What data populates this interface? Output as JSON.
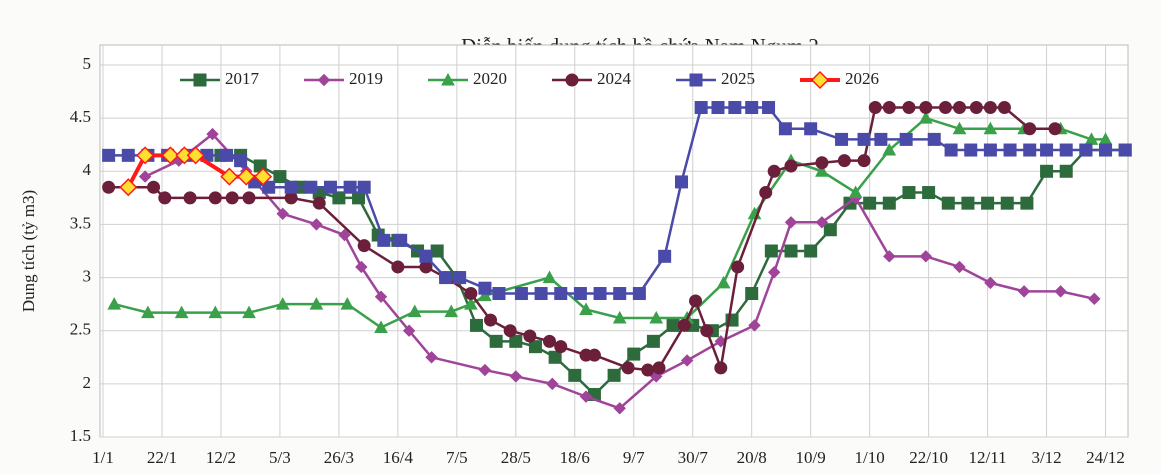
{
  "chart_data": {
    "type": "line",
    "title": "Diễn biến dung tích hồ chứa Nam Ngum 2",
    "y_label": "Dung tích (tỷ m3)",
    "xlim": [
      1,
      366
    ],
    "ylim": [
      1.5,
      5
    ],
    "xticks": [
      {
        "value": 1,
        "label": "1/1"
      },
      {
        "value": 22,
        "label": "22/1"
      },
      {
        "value": 43,
        "label": "12/2"
      },
      {
        "value": 64,
        "label": "5/3"
      },
      {
        "value": 85,
        "label": "26/3"
      },
      {
        "value": 106,
        "label": "16/4"
      },
      {
        "value": 127,
        "label": "7/5"
      },
      {
        "value": 148,
        "label": "28/5"
      },
      {
        "value": 169,
        "label": "18/6"
      },
      {
        "value": 190,
        "label": "9/7"
      },
      {
        "value": 211,
        "label": "30/7"
      },
      {
        "value": 232,
        "label": "20/8"
      },
      {
        "value": 253,
        "label": "10/9"
      },
      {
        "value": 274,
        "label": "1/10"
      },
      {
        "value": 295,
        "label": "22/10"
      },
      {
        "value": 316,
        "label": "12/11"
      },
      {
        "value": 337,
        "label": "3/12"
      },
      {
        "value": 358,
        "label": "24/12"
      }
    ],
    "yticks": [
      1.5,
      2,
      2.5,
      3,
      3.5,
      4,
      4.5,
      5
    ],
    "grid": true,
    "legend": "top",
    "series": [
      {
        "name": "2017",
        "color": "#2e6b3c",
        "marker": "square",
        "x": [
          43,
          50,
          57,
          64,
          71,
          78,
          85,
          92,
          99,
          106,
          113,
          120,
          127,
          134,
          141,
          148,
          155,
          162,
          169,
          176,
          183,
          190,
          197,
          204,
          211,
          218,
          225,
          232,
          239,
          246,
          253,
          260,
          267,
          274,
          281,
          288,
          295,
          302,
          309,
          316,
          323,
          330,
          337,
          344,
          351,
          358,
          365
        ],
        "values": [
          4.15,
          4.15,
          4.05,
          3.95,
          3.85,
          3.8,
          3.75,
          3.75,
          3.4,
          3.35,
          3.25,
          3.25,
          3.0,
          2.55,
          2.4,
          2.4,
          2.35,
          2.25,
          2.08,
          1.9,
          2.08,
          2.28,
          2.4,
          2.55,
          2.55,
          2.5,
          2.6,
          2.85,
          3.25,
          3.25,
          3.25,
          3.45,
          3.7,
          3.7,
          3.7,
          3.8,
          3.8,
          3.7,
          3.7,
          3.7,
          3.7,
          3.7,
          4.0,
          4.0,
          4.2,
          4.2,
          4.2
        ]
      },
      {
        "name": "2019",
        "color": "#a0449a",
        "marker": "diamond",
        "x": [
          16,
          28,
          40,
          52,
          65,
          77,
          87,
          93,
          100,
          110,
          118,
          137,
          148,
          161,
          173,
          185,
          198,
          209,
          221,
          233,
          240,
          246,
          257,
          269,
          281,
          294,
          306,
          317,
          329,
          342,
          354
        ],
        "values": [
          3.95,
          4.1,
          4.35,
          4.0,
          3.6,
          3.5,
          3.4,
          3.1,
          2.82,
          2.5,
          2.25,
          2.13,
          2.07,
          2.0,
          1.88,
          1.77,
          2.07,
          2.22,
          2.4,
          2.55,
          3.05,
          3.52,
          3.52,
          3.75,
          3.2,
          3.2,
          3.1,
          2.95,
          2.87,
          2.87,
          2.8
        ]
      },
      {
        "name": "2020",
        "color": "#3aa04a",
        "marker": "triangle",
        "x": [
          5,
          17,
          29,
          41,
          53,
          65,
          77,
          88,
          100,
          112,
          125,
          132,
          137,
          160,
          173,
          185,
          198,
          209,
          222,
          233,
          246,
          257,
          269,
          281,
          294,
          306,
          317,
          329,
          342,
          353,
          358
        ],
        "values": [
          2.75,
          2.67,
          2.67,
          2.67,
          2.67,
          2.75,
          2.75,
          2.75,
          2.53,
          2.68,
          2.68,
          2.75,
          2.83,
          3.0,
          2.7,
          2.62,
          2.62,
          2.62,
          2.95,
          3.6,
          4.1,
          4.0,
          3.8,
          4.2,
          4.5,
          4.4,
          4.4,
          4.4,
          4.4,
          4.3,
          4.3
        ]
      },
      {
        "name": "2024",
        "color": "#6b1f3a",
        "marker": "circle",
        "x": [
          3,
          19,
          23,
          32,
          41,
          47,
          53,
          68,
          78,
          94,
          106,
          116,
          123,
          132,
          139,
          146,
          153,
          160,
          164,
          173,
          176,
          188,
          195,
          199,
          208,
          212,
          216,
          221,
          227,
          237,
          240,
          246,
          257,
          265,
          272,
          276,
          281,
          288,
          294,
          301,
          306,
          312,
          317,
          322,
          331,
          340
        ],
        "values": [
          3.85,
          3.85,
          3.75,
          3.75,
          3.75,
          3.75,
          3.75,
          3.75,
          3.7,
          3.3,
          3.1,
          3.1,
          3.0,
          2.85,
          2.6,
          2.5,
          2.45,
          2.4,
          2.35,
          2.27,
          2.27,
          2.15,
          2.13,
          2.15,
          2.55,
          2.78,
          2.5,
          2.15,
          3.1,
          3.8,
          4.0,
          4.05,
          4.08,
          4.1,
          4.1,
          4.6,
          4.6,
          4.6,
          4.6,
          4.6,
          4.6,
          4.6,
          4.6,
          4.6,
          4.4,
          4.4
        ]
      },
      {
        "name": "2025",
        "color": "#4a4aa8",
        "marker": "square",
        "x": [
          3,
          10,
          17,
          24,
          31,
          38,
          45,
          50,
          55,
          60,
          68,
          75,
          82,
          89,
          94,
          101,
          107,
          116,
          123,
          128,
          137,
          142,
          150,
          157,
          164,
          171,
          178,
          185,
          192,
          201,
          207,
          214,
          220,
          226,
          232,
          238,
          244,
          253,
          264,
          272,
          278,
          287,
          297,
          303,
          310,
          317,
          324,
          331,
          337,
          344,
          351,
          358,
          365
        ],
        "values": [
          4.15,
          4.15,
          4.15,
          4.15,
          4.15,
          4.15,
          4.15,
          4.1,
          3.9,
          3.85,
          3.85,
          3.85,
          3.85,
          3.85,
          3.85,
          3.35,
          3.35,
          3.2,
          3.0,
          3.0,
          2.9,
          2.85,
          2.85,
          2.85,
          2.85,
          2.85,
          2.85,
          2.85,
          2.85,
          3.2,
          3.9,
          4.6,
          4.6,
          4.6,
          4.6,
          4.6,
          4.4,
          4.4,
          4.3,
          4.3,
          4.3,
          4.3,
          4.3,
          4.2,
          4.2,
          4.2,
          4.2,
          4.2,
          4.2,
          4.2,
          4.2,
          4.2,
          4.2
        ]
      },
      {
        "name": "2026",
        "color": "#ff1a1a",
        "marker": "diamond",
        "marker_color": "#ffe030",
        "x": [
          10,
          16,
          25,
          30,
          34,
          46,
          52,
          58
        ],
        "values": [
          3.85,
          4.15,
          4.15,
          4.15,
          4.15,
          3.95,
          3.95,
          3.95
        ]
      }
    ]
  }
}
